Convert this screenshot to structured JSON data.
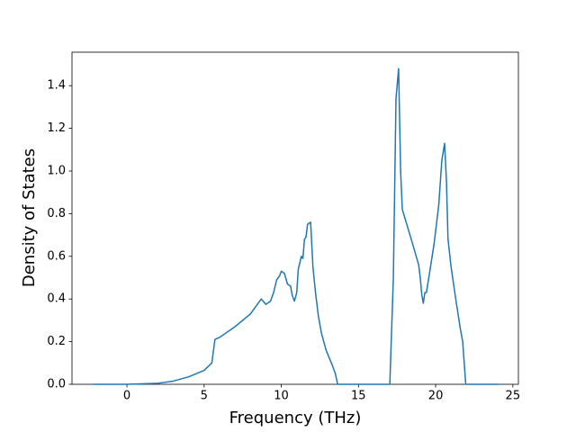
{
  "chart_data": {
    "type": "line",
    "x_label": "Frequency (THz)",
    "y_label": "Density of States",
    "x": [
      -2.2,
      0,
      2,
      3,
      4,
      5,
      5.5,
      5.7,
      6,
      7,
      8,
      8.7,
      9,
      9.3,
      9.5,
      9.7,
      9.9,
      10,
      10.2,
      10.4,
      10.6,
      10.7,
      10.85,
      11,
      11.1,
      11.3,
      11.4,
      11.5,
      11.6,
      11.7,
      11.9,
      12.05,
      12.2,
      12.4,
      12.6,
      12.9,
      13.3,
      13.5,
      13.65,
      17.03,
      17.26,
      17.43,
      17.6,
      17.73,
      17.84,
      18.5,
      18.9,
      19.0,
      19.1,
      19.2,
      19.3,
      19.4,
      19.6,
      19.9,
      20.2,
      20.4,
      20.58,
      20.7,
      20.8,
      21.0,
      21.3,
      21.6,
      21.75,
      21.9,
      21.95,
      24.1
    ],
    "series": [
      {
        "color": "#1f77b4",
        "values": [
          0,
          0,
          0.005,
          0.015,
          0.035,
          0.065,
          0.1,
          0.21,
          0.22,
          0.27,
          0.33,
          0.4,
          0.375,
          0.39,
          0.43,
          0.49,
          0.51,
          0.53,
          0.52,
          0.47,
          0.46,
          0.42,
          0.39,
          0.43,
          0.54,
          0.6,
          0.59,
          0.68,
          0.69,
          0.75,
          0.76,
          0.55,
          0.44,
          0.32,
          0.24,
          0.16,
          0.09,
          0.05,
          0,
          0,
          0.5,
          1.34,
          1.48,
          1.0,
          0.82,
          0.66,
          0.56,
          0.5,
          0.42,
          0.38,
          0.43,
          0.43,
          0.52,
          0.66,
          0.84,
          1.05,
          1.13,
          0.95,
          0.68,
          0.55,
          0.4,
          0.26,
          0.2,
          0.05,
          0,
          0
        ]
      }
    ],
    "xlim": [
      -3.56,
      25.36
    ],
    "ylim": [
      0,
      1.557
    ],
    "xticks": [
      0,
      5,
      10,
      15,
      20,
      25
    ],
    "yticks": [
      {
        "value": 0,
        "label": "0.0"
      },
      0.2,
      0.4,
      0.6,
      0.8,
      {
        "value": 1,
        "label": "1.0"
      },
      1.2,
      1.4
    ]
  }
}
